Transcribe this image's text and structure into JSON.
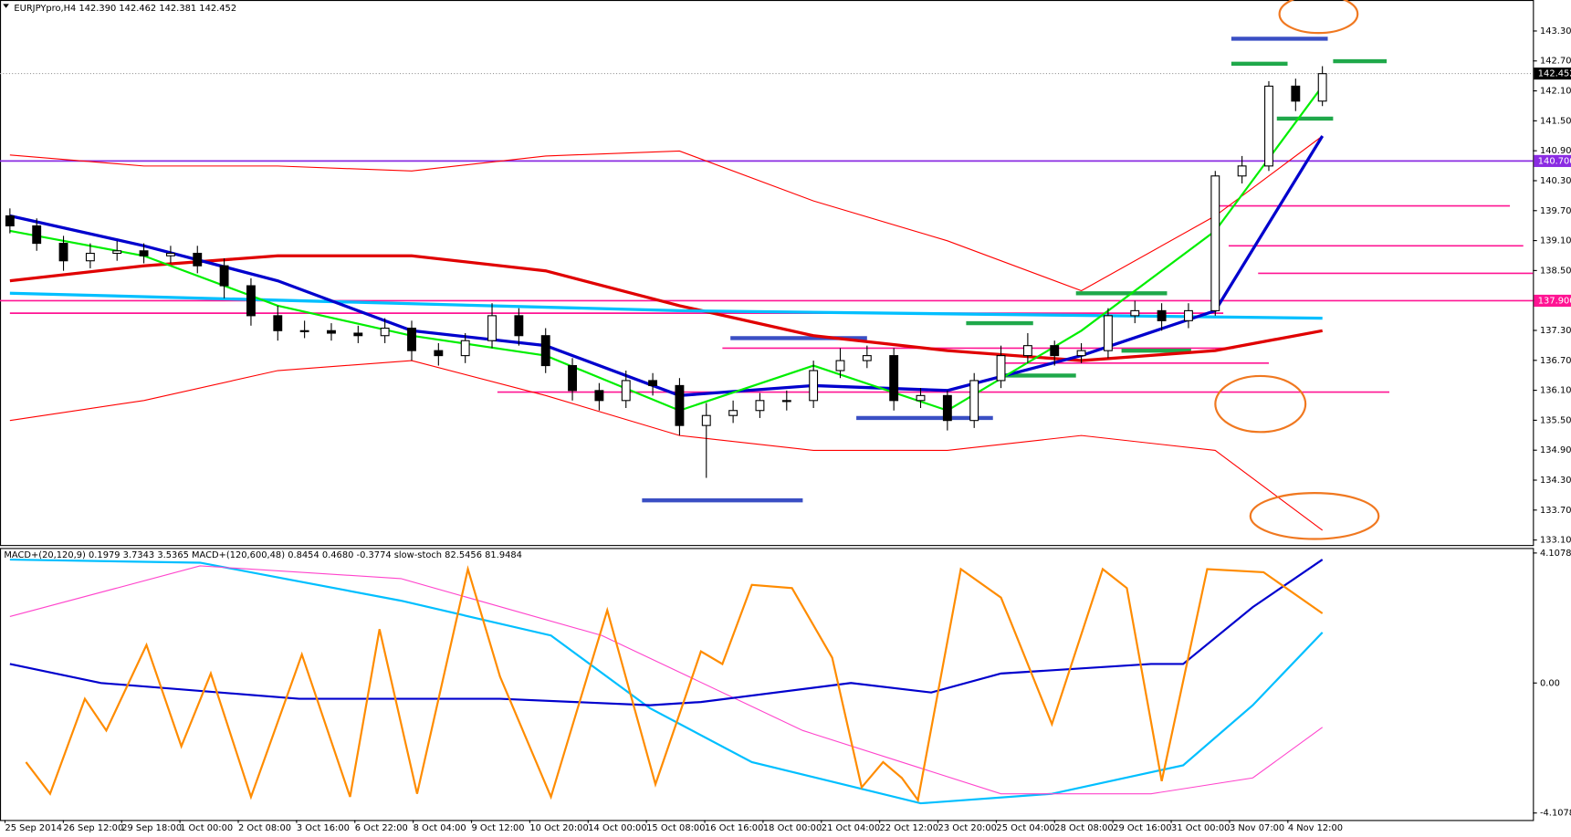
{
  "chart_data": [
    {
      "type": "candlestick",
      "title": "EURJPYpro,H4  142.390 142.462 142.381 142.452",
      "xlim": [
        -0.37,
        56.86
      ],
      "ylim": [
        133.005,
        143.926
      ],
      "yticks": [
        143.305,
        142.705,
        142.105,
        141.505,
        140.905,
        140.305,
        139.705,
        139.105,
        138.505,
        137.905,
        137.305,
        136.705,
        136.105,
        135.505,
        134.905,
        134.305,
        133.705,
        133.105
      ],
      "open": [
        139.6,
        139.4,
        139.05,
        138.7,
        138.85,
        138.9,
        138.8,
        138.85,
        138.6,
        138.2,
        137.6,
        137.3,
        137.3,
        137.25,
        137.2,
        137.35,
        136.9,
        136.8,
        137.1,
        137.6,
        137.2,
        136.6,
        136.1,
        135.9,
        136.3,
        136.2,
        135.4,
        135.6,
        135.7,
        135.9,
        135.9,
        136.5,
        136.7,
        136.8,
        135.9,
        136.0,
        135.5,
        136.3,
        136.8,
        137.0,
        136.8,
        136.9,
        137.6,
        137.7,
        137.5,
        137.7,
        140.4,
        140.6,
        142.2,
        141.9
      ],
      "high": [
        139.75,
        139.55,
        139.2,
        139.05,
        139.1,
        139.05,
        139.0,
        139.0,
        138.75,
        138.35,
        137.8,
        137.5,
        137.45,
        137.4,
        137.55,
        137.5,
        137.05,
        137.25,
        137.85,
        137.75,
        137.35,
        136.75,
        136.25,
        136.5,
        136.45,
        136.35,
        135.85,
        135.9,
        136.05,
        136.1,
        136.7,
        136.95,
        137.0,
        136.95,
        136.15,
        136.1,
        136.45,
        137.0,
        137.25,
        137.1,
        137.05,
        137.75,
        137.9,
        137.85,
        137.85,
        140.5,
        140.8,
        142.3,
        142.35,
        142.6
      ],
      "low": [
        139.25,
        138.9,
        138.5,
        138.55,
        138.7,
        138.65,
        138.65,
        138.45,
        137.95,
        137.4,
        137.1,
        137.15,
        137.1,
        137.05,
        137.05,
        136.7,
        136.6,
        136.65,
        136.95,
        137.0,
        136.45,
        135.9,
        135.7,
        135.75,
        136.0,
        135.2,
        134.35,
        135.45,
        135.55,
        135.7,
        135.75,
        136.35,
        136.55,
        135.7,
        135.75,
        135.3,
        135.35,
        136.15,
        136.65,
        136.6,
        136.65,
        136.75,
        137.45,
        137.3,
        137.35,
        137.6,
        140.25,
        140.5,
        141.7,
        141.8
      ],
      "close": [
        139.4,
        139.05,
        138.7,
        138.85,
        138.9,
        138.8,
        138.85,
        138.6,
        138.2,
        137.6,
        137.3,
        137.3,
        137.25,
        137.2,
        137.35,
        136.9,
        136.8,
        137.1,
        137.6,
        137.2,
        136.6,
        136.1,
        135.9,
        136.3,
        136.2,
        135.4,
        135.6,
        135.7,
        135.9,
        135.9,
        136.5,
        136.7,
        136.8,
        135.9,
        136.0,
        135.5,
        136.3,
        136.8,
        137.0,
        136.8,
        136.9,
        137.6,
        137.7,
        137.5,
        137.7,
        140.4,
        140.6,
        142.2,
        141.9,
        142.45
      ],
      "series": [
        {
          "color": "#ff0000",
          "width": 1,
          "x": [
            0,
            5,
            10,
            15,
            20,
            25,
            30,
            35,
            40,
            45,
            49
          ],
          "values": [
            140.82,
            140.6,
            140.6,
            140.5,
            140.8,
            140.9,
            139.9,
            139.1,
            138.1,
            139.6,
            141.2
          ]
        },
        {
          "color": "#ff0000",
          "width": 1,
          "x": [
            0,
            5,
            10,
            15,
            20,
            25,
            30,
            35,
            40,
            45,
            49
          ],
          "values": [
            135.5,
            135.9,
            136.5,
            136.7,
            136.0,
            135.2,
            134.9,
            134.9,
            135.2,
            134.9,
            133.3
          ]
        },
        {
          "color": "#e00000",
          "width": 3,
          "x": [
            0,
            5,
            10,
            15,
            20,
            25,
            30,
            35,
            40,
            45,
            49
          ],
          "values": [
            138.3,
            138.6,
            138.8,
            138.8,
            138.5,
            137.8,
            137.2,
            136.9,
            136.7,
            136.9,
            137.3
          ]
        },
        {
          "color": "#00bfff",
          "width": 3,
          "x": [
            0,
            25,
            49
          ],
          "values": [
            138.05,
            137.7,
            137.55
          ]
        },
        {
          "color": "#0000cd",
          "width": 3,
          "x": [
            0,
            5,
            10,
            15,
            20,
            25,
            30,
            35,
            40,
            45,
            49
          ],
          "values": [
            139.6,
            139.0,
            138.3,
            137.3,
            137.0,
            136.0,
            136.2,
            136.1,
            136.8,
            137.7,
            141.2
          ]
        },
        {
          "color": "#00ee00",
          "width": 2,
          "x": [
            0,
            5,
            10,
            15,
            20,
            25,
            30,
            35,
            40,
            45,
            49
          ],
          "values": [
            139.3,
            138.8,
            137.8,
            137.2,
            136.8,
            135.7,
            136.6,
            135.7,
            137.3,
            139.3,
            142.2
          ]
        }
      ],
      "levels": [
        {
          "value": 140.7,
          "label": "140.700",
          "color": "#8a2be2"
        },
        {
          "value": 137.9,
          "label": "137.900",
          "color": "#ff1493"
        }
      ],
      "last_price": 142.452,
      "segments": [
        {
          "value": 139.8,
          "from": 45.0,
          "to": 56.0,
          "color": "#ff1493"
        },
        {
          "value": 139.0,
          "from": 45.5,
          "to": 56.5,
          "color": "#ff1493"
        },
        {
          "value": 138.45,
          "from": 46.6,
          "to": 56.9,
          "color": "#ff1493"
        },
        {
          "value": 137.65,
          "from": 0,
          "to": 45.3,
          "color": "#ff1493"
        },
        {
          "value": 136.95,
          "from": 26.6,
          "to": 45.7,
          "color": "#ff1493"
        },
        {
          "value": 136.65,
          "from": 37.0,
          "to": 47.0,
          "color": "#ff1493"
        },
        {
          "value": 136.07,
          "from": 18.2,
          "to": 51.5,
          "color": "#ff1493"
        },
        {
          "value": 133.9,
          "from": 23.6,
          "to": 29.6,
          "color": "#3a4fc4"
        },
        {
          "value": 135.55,
          "from": 31.6,
          "to": 36.7,
          "color": "#3a4fc4"
        },
        {
          "value": 137.15,
          "from": 26.9,
          "to": 32.0,
          "color": "#3a4fc4"
        },
        {
          "value": 143.15,
          "from": 45.6,
          "to": 49.2,
          "color": "#3a4fc4"
        },
        {
          "value": 138.05,
          "from": 39.8,
          "to": 43.2,
          "color": "#1fa84a"
        },
        {
          "value": 137.45,
          "from": 35.7,
          "to": 38.2,
          "color": "#1fa84a"
        },
        {
          "value": 136.9,
          "from": 41.5,
          "to": 44.1,
          "color": "#1fa84a"
        },
        {
          "value": 136.4,
          "from": 37.0,
          "to": 39.8,
          "color": "#1fa84a"
        },
        {
          "value": 142.65,
          "from": 45.6,
          "to": 47.7,
          "color": "#1fa84a"
        },
        {
          "value": 142.7,
          "from": 49.4,
          "to": 51.4,
          "color": "#1fa84a"
        },
        {
          "value": 141.55,
          "from": 47.3,
          "to": 49.4,
          "color": "#1fa84a"
        }
      ]
    },
    {
      "type": "line",
      "title": "MACD+(20,120,9) 0.1979 3.7343 3.5365  MACD+(120,600,48) 0.8454 0.4680 -0.3774  slow-stoch 82.5456 81.9484",
      "xlim": [
        -0.37,
        56.86
      ],
      "ylim": [
        -4.329,
        4.266
      ],
      "yticks": [
        4.1078,
        {
          "value": 0,
          "label": "0.00"
        },
        -4.1078
      ],
      "categories": [
        "25 Sep 2014",
        "26 Sep 12:00",
        "29 Sep 18:00",
        "1 Oct 00:00",
        "2 Oct 08:00",
        "3 Oct 16:00",
        "6 Oct 22:00",
        "8 Oct 04:00",
        "9 Oct 12:00",
        "10 Oct 20:00",
        "14 Oct 00:00",
        "15 Oct 08:00",
        "16 Oct 16:00",
        "18 Oct 00:00",
        "21 Oct 04:00",
        "22 Oct 12:00",
        "23 Oct 20:00",
        "25 Oct 04:00",
        "28 Oct 08:00",
        "29 Oct 16:00",
        "31 Oct 00:00",
        "3 Nov 07:00",
        "4 Nov 12:00"
      ],
      "series": [
        {
          "color": "#00bfff",
          "width": 2,
          "x": [
            0,
            7.1,
            14.6,
            20.2,
            23.9,
            27.7,
            34.0,
            38.9,
            43.8,
            46.4,
            49
          ],
          "values": [
            3.9,
            3.8,
            2.6,
            1.5,
            -0.8,
            -2.5,
            -3.8,
            -3.5,
            -2.6,
            -0.7,
            1.6
          ]
        },
        {
          "color": "#ff44cc",
          "width": 1,
          "x": [
            0,
            7.1,
            14.6,
            22.1,
            29.6,
            37.0,
            42.6,
            46.4,
            49
          ],
          "values": [
            2.1,
            3.7,
            3.3,
            1.5,
            -1.5,
            -3.5,
            -3.5,
            -3.0,
            -1.4
          ]
        },
        {
          "color": "#0000cd",
          "width": 2,
          "x": [
            0,
            3.4,
            10.8,
            18.3,
            23.9,
            25.8,
            31.4,
            34.4,
            37.0,
            42.6,
            43.8,
            46.4,
            49
          ],
          "values": [
            0.6,
            0.0,
            -0.5,
            -0.5,
            -0.7,
            -0.6,
            0.0,
            -0.3,
            0.3,
            0.6,
            0.6,
            2.4,
            3.9
          ]
        },
        {
          "color": "#ff8c00",
          "width": 2,
          "x": [
            0.6,
            1.5,
            2.8,
            3.6,
            5.1,
            6.4,
            7.5,
            9.0,
            10.9,
            12.7,
            13.8,
            15.2,
            17.1,
            18.3,
            20.2,
            22.3,
            24.1,
            25.8,
            26.6,
            27.7,
            29.2,
            30.7,
            31.8,
            32.6,
            33.3,
            33.9,
            35.5,
            37.0,
            38.9,
            40.8,
            41.7,
            43.0,
            44.7,
            46.8,
            49
          ],
          "values": [
            -2.5,
            -3.5,
            -0.5,
            -1.5,
            1.2,
            -2.0,
            0.3,
            -3.6,
            0.9,
            -3.6,
            1.7,
            -3.5,
            3.6,
            0.2,
            -3.6,
            2.3,
            -3.2,
            1.0,
            0.6,
            3.1,
            3.0,
            0.8,
            -3.3,
            -2.5,
            -3.0,
            -3.7,
            3.6,
            2.7,
            -1.3,
            3.6,
            3.0,
            -3.1,
            3.6,
            3.5,
            2.2
          ]
        }
      ]
    }
  ]
}
